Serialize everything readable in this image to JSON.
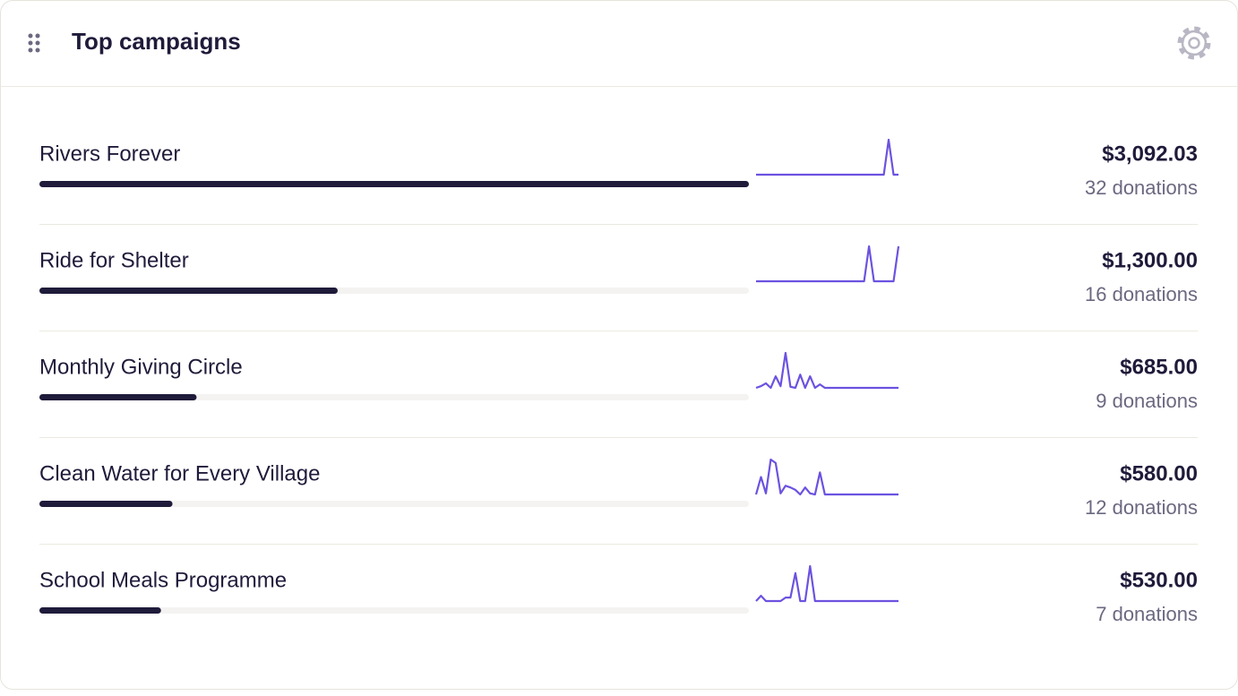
{
  "header": {
    "title": "Top campaigns"
  },
  "campaigns": [
    {
      "name": "Rivers Forever",
      "amount": {
        "value": 3092.03,
        "label": "$3,092.03"
      },
      "donations": "32 donations",
      "trend": [
        0,
        0,
        0,
        0,
        0,
        0,
        0,
        0,
        0,
        0,
        0,
        0,
        0,
        0,
        0,
        0,
        0,
        0,
        0,
        0,
        0,
        0,
        0,
        0,
        0,
        0,
        0,
        10,
        0,
        0
      ]
    },
    {
      "name": "Ride for Shelter",
      "amount": {
        "value": 1300,
        "label": "$1,300.00"
      },
      "donations": "16 donations",
      "trend": [
        0,
        0,
        0,
        0,
        0,
        0,
        0,
        0,
        0,
        0,
        0,
        0,
        0,
        0,
        0,
        0,
        0,
        0,
        0,
        0,
        0,
        0,
        0,
        10,
        0,
        0,
        0,
        0,
        0,
        10
      ]
    },
    {
      "name": "Monthly Giving Circle",
      "amount": {
        "value": 685,
        "label": "$685.00"
      },
      "donations": "9 donations",
      "trend": [
        0,
        0.5,
        1.3,
        0,
        3.3,
        0.5,
        10,
        0.3,
        0,
        3.8,
        0,
        3.3,
        0,
        1,
        0,
        0,
        0,
        0,
        0,
        0,
        0,
        0,
        0,
        0,
        0,
        0,
        0,
        0,
        0,
        0
      ]
    },
    {
      "name": "Clean Water for Every Village",
      "amount": {
        "value": 580,
        "label": "$580.00"
      },
      "donations": "12 donations",
      "trend": [
        0,
        5,
        0.3,
        10,
        9,
        0.3,
        2.5,
        2,
        1.3,
        0,
        2,
        0.3,
        0,
        6.3,
        0,
        0,
        0,
        0,
        0,
        0,
        0,
        0,
        0,
        0,
        0,
        0,
        0,
        0,
        0,
        0
      ]
    },
    {
      "name": "School Meals Programme",
      "amount": {
        "value": 530,
        "label": "$530.00"
      },
      "donations": "7 donations",
      "trend": [
        0,
        1.5,
        0,
        0,
        0,
        0,
        1,
        1,
        8,
        0,
        0,
        10,
        0,
        0,
        0,
        0,
        0,
        0,
        0,
        0,
        0,
        0,
        0,
        0,
        0,
        0,
        0,
        0,
        0,
        0
      ]
    }
  ]
}
